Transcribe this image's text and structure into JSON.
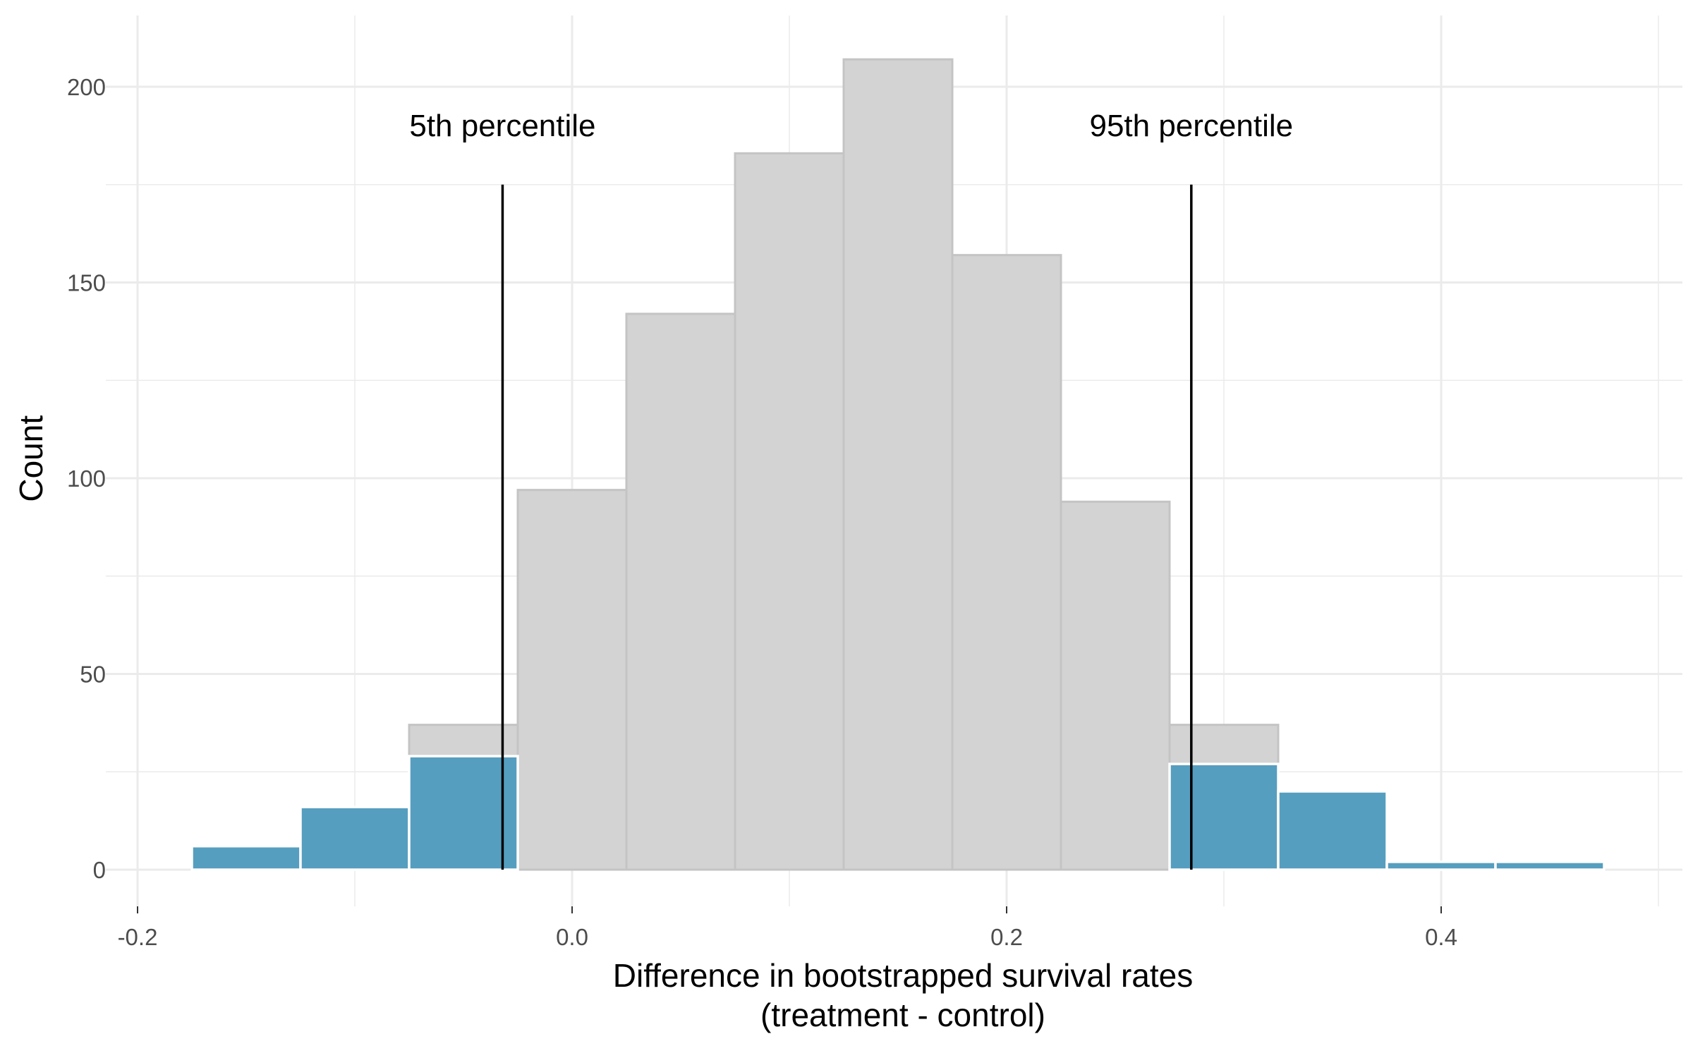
{
  "chart_data": {
    "type": "bar",
    "xlabel_line1": "Difference in bootstrapped survival rates",
    "xlabel_line2": "(treatment - control)",
    "ylabel": "Count",
    "xlim": [
      -0.2,
      0.5
    ],
    "ylim": [
      0,
      210
    ],
    "x_ticks": [
      -0.2,
      0.0,
      0.2,
      0.4
    ],
    "x_tick_labels": [
      "-0.2",
      "0.0",
      "0.2",
      "0.4"
    ],
    "y_ticks": [
      0,
      50,
      100,
      150,
      200
    ],
    "y_tick_labels": [
      "0",
      "50",
      "100",
      "150",
      "200"
    ],
    "grid": true,
    "colors": {
      "gray_bars": "#d3d3d3",
      "gray_outline": "#c4c4c4",
      "tail_bars": "#569ebf"
    },
    "series": [
      {
        "role": "all-bootstrap-samples",
        "bins": [
          {
            "x0": -0.075,
            "x1": -0.025,
            "count": 37
          },
          {
            "x0": -0.025,
            "x1": 0.025,
            "count": 97
          },
          {
            "x0": 0.025,
            "x1": 0.075,
            "count": 142
          },
          {
            "x0": 0.075,
            "x1": 0.125,
            "count": 183
          },
          {
            "x0": 0.125,
            "x1": 0.175,
            "count": 207
          },
          {
            "x0": 0.175,
            "x1": 0.225,
            "count": 157
          },
          {
            "x0": 0.225,
            "x1": 0.275,
            "count": 94
          },
          {
            "x0": 0.275,
            "x1": 0.325,
            "count": 37
          }
        ]
      },
      {
        "role": "tails",
        "bins": [
          {
            "x0": -0.175,
            "x1": -0.125,
            "count": 6
          },
          {
            "x0": -0.125,
            "x1": -0.075,
            "count": 16
          },
          {
            "x0": -0.075,
            "x1": -0.025,
            "count": 29
          },
          {
            "x0": 0.275,
            "x1": 0.325,
            "count": 27
          },
          {
            "x0": 0.325,
            "x1": 0.375,
            "count": 20
          },
          {
            "x0": 0.375,
            "x1": 0.425,
            "count": 2
          },
          {
            "x0": 0.425,
            "x1": 0.475,
            "count": 2
          }
        ]
      }
    ],
    "annotations": [
      {
        "label": "5th percentile",
        "x": -0.032,
        "y_top": 175
      },
      {
        "label": "95th percentile",
        "x": 0.285,
        "y_top": 175
      }
    ]
  }
}
